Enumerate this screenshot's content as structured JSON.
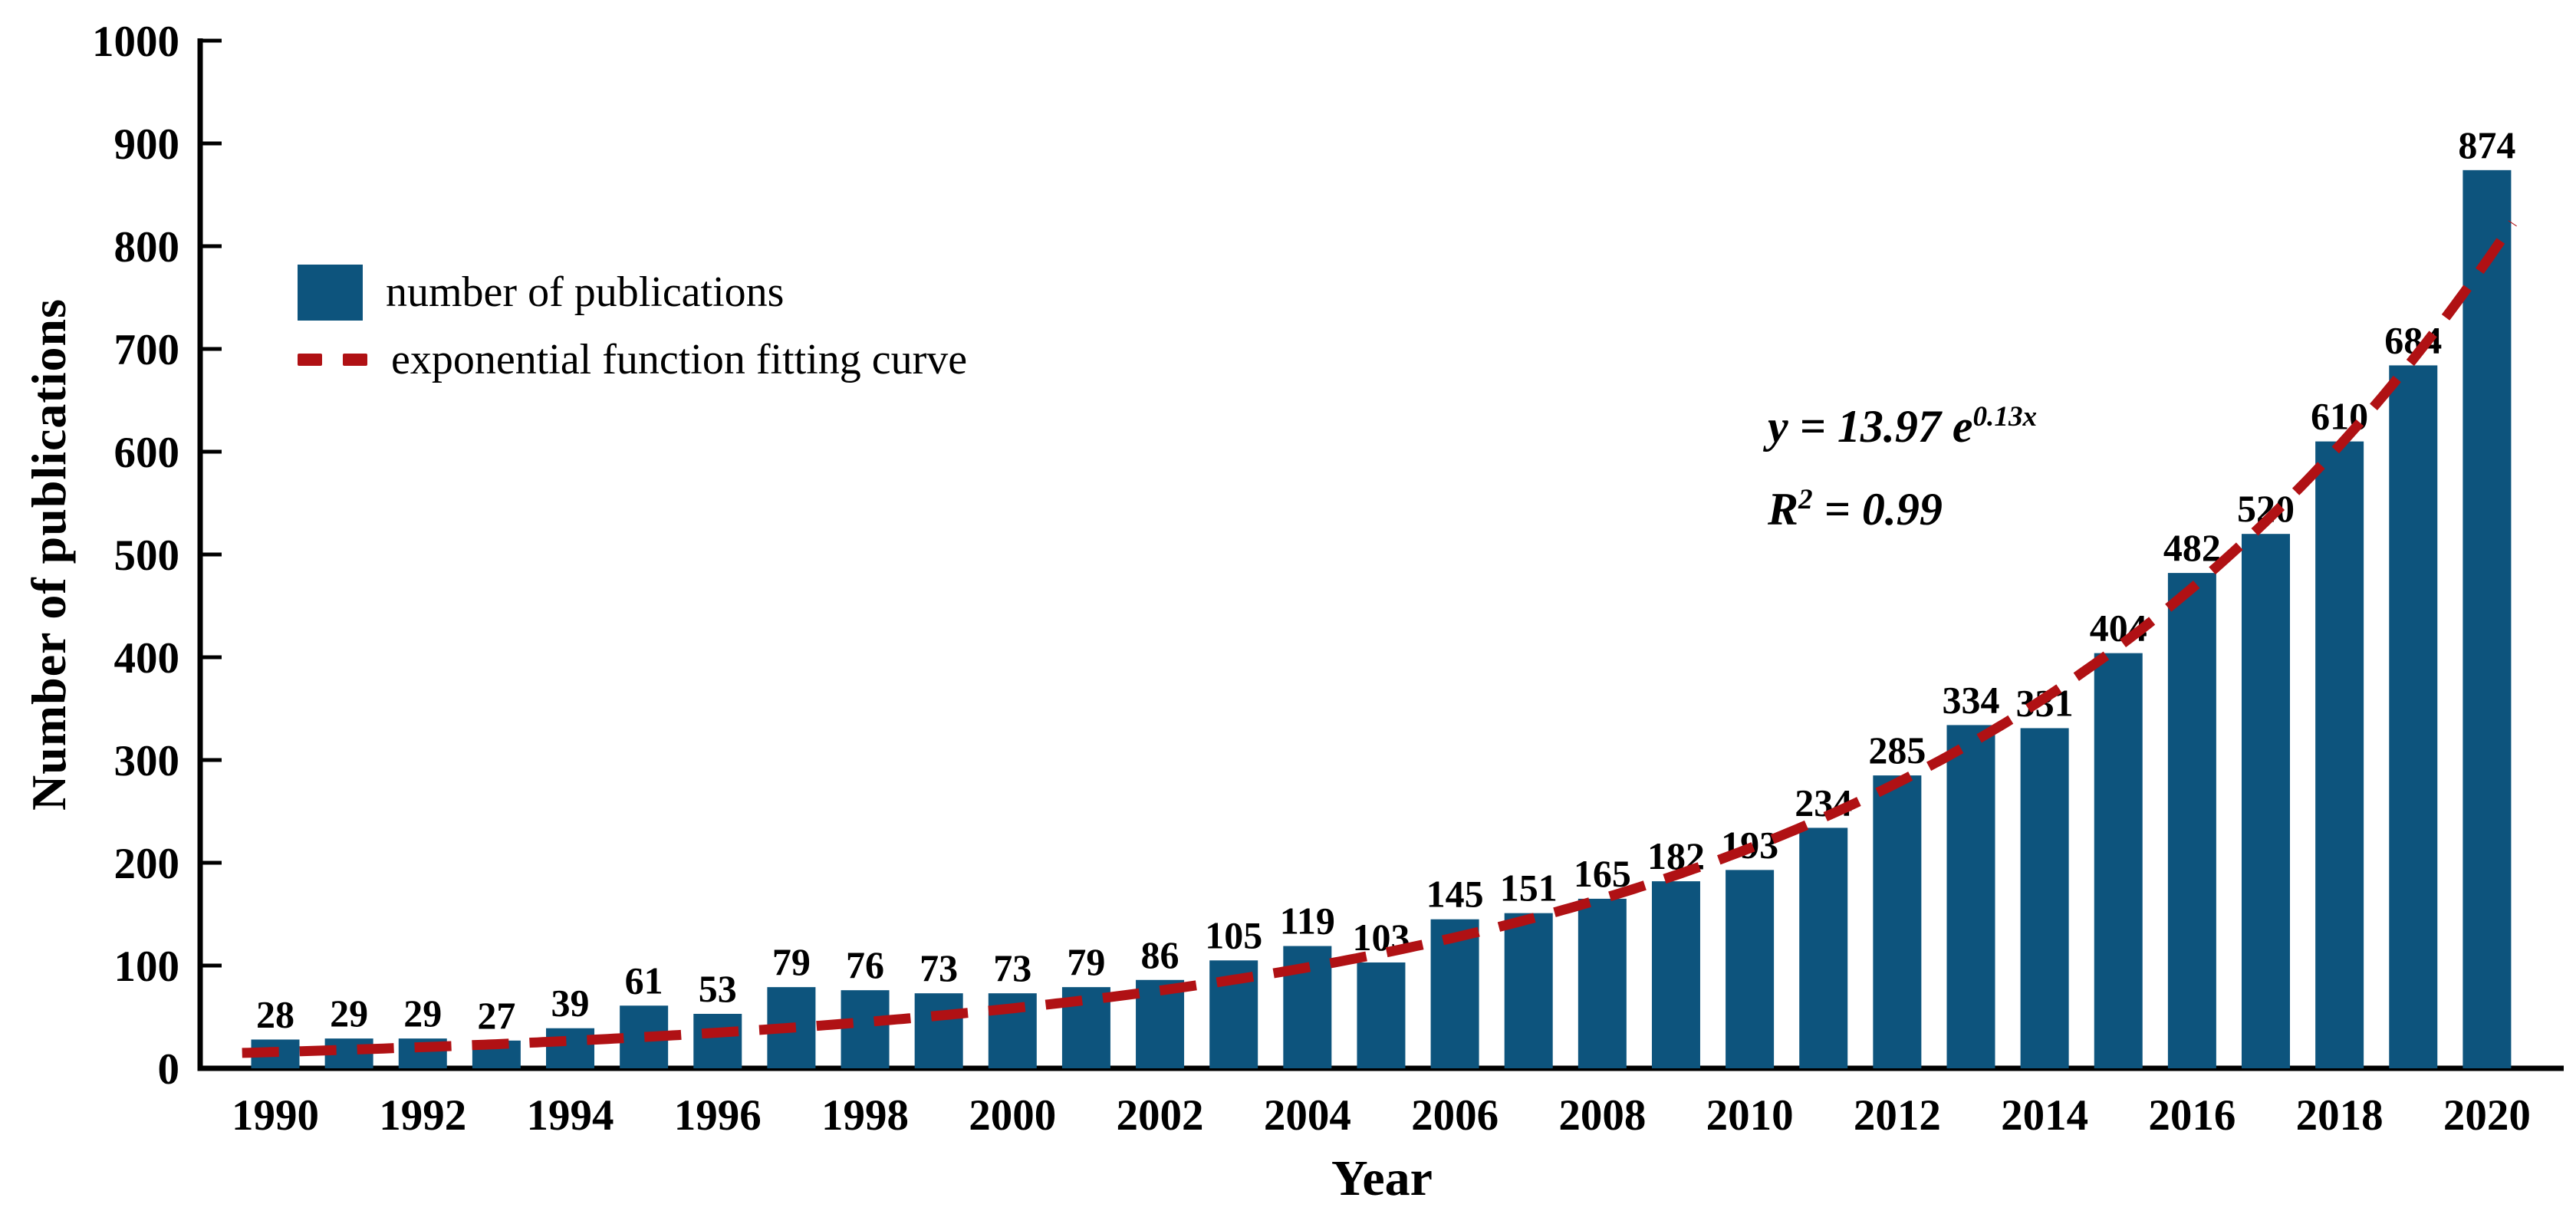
{
  "figure": {
    "background": "#ffffff",
    "ylabel": "Number of publications",
    "xlabel": "Year",
    "legend": [
      {
        "swatch": "bar",
        "label": "number of publications"
      },
      {
        "swatch": "dashed-line",
        "label": "exponential function fitting curve"
      }
    ],
    "equation": {
      "line1_base": "y = 13.97 e",
      "line1_sup": "0.13x",
      "line2_base": "R",
      "line2_sup": "2",
      "line2_rest": " = 0.99"
    },
    "colors": {
      "bar": "#0D547D",
      "curve": "#B01114",
      "axis": "#000000",
      "text": "#000000"
    }
  },
  "chart_data": {
    "type": "bar",
    "title": "",
    "xlabel": "Year",
    "ylabel": "Number of publications",
    "categories": [
      1990,
      1991,
      1992,
      1993,
      1994,
      1995,
      1996,
      1997,
      1998,
      1999,
      2000,
      2001,
      2002,
      2003,
      2004,
      2005,
      2006,
      2007,
      2008,
      2009,
      2010,
      2011,
      2012,
      2013,
      2014,
      2015,
      2016,
      2017,
      2018,
      2019,
      2020
    ],
    "values": [
      28,
      29,
      29,
      27,
      39,
      61,
      53,
      79,
      76,
      73,
      73,
      79,
      86,
      105,
      119,
      103,
      145,
      151,
      165,
      182,
      193,
      234,
      285,
      334,
      331,
      404,
      482,
      520,
      610,
      684,
      874
    ],
    "bar_labels_shown": true,
    "ylim": [
      0,
      1000
    ],
    "ytick_step": 100,
    "xtick_labels": [
      "1990",
      "1992",
      "1994",
      "1996",
      "1998",
      "2000",
      "2002",
      "2004",
      "2006",
      "2008",
      "2010",
      "2012",
      "2014",
      "2016",
      "2018",
      "2020"
    ],
    "grid": false,
    "legend_position": "upper left",
    "fit_curve": {
      "type": "exponential",
      "formula": "y = 13.97 e^(0.13x)",
      "a": 13.97,
      "b": 0.13,
      "x_is": "year - 1989",
      "r_squared": 0.99,
      "style": "dashed",
      "drawn_range_years": [
        1989.55,
        2020.35
      ]
    }
  }
}
